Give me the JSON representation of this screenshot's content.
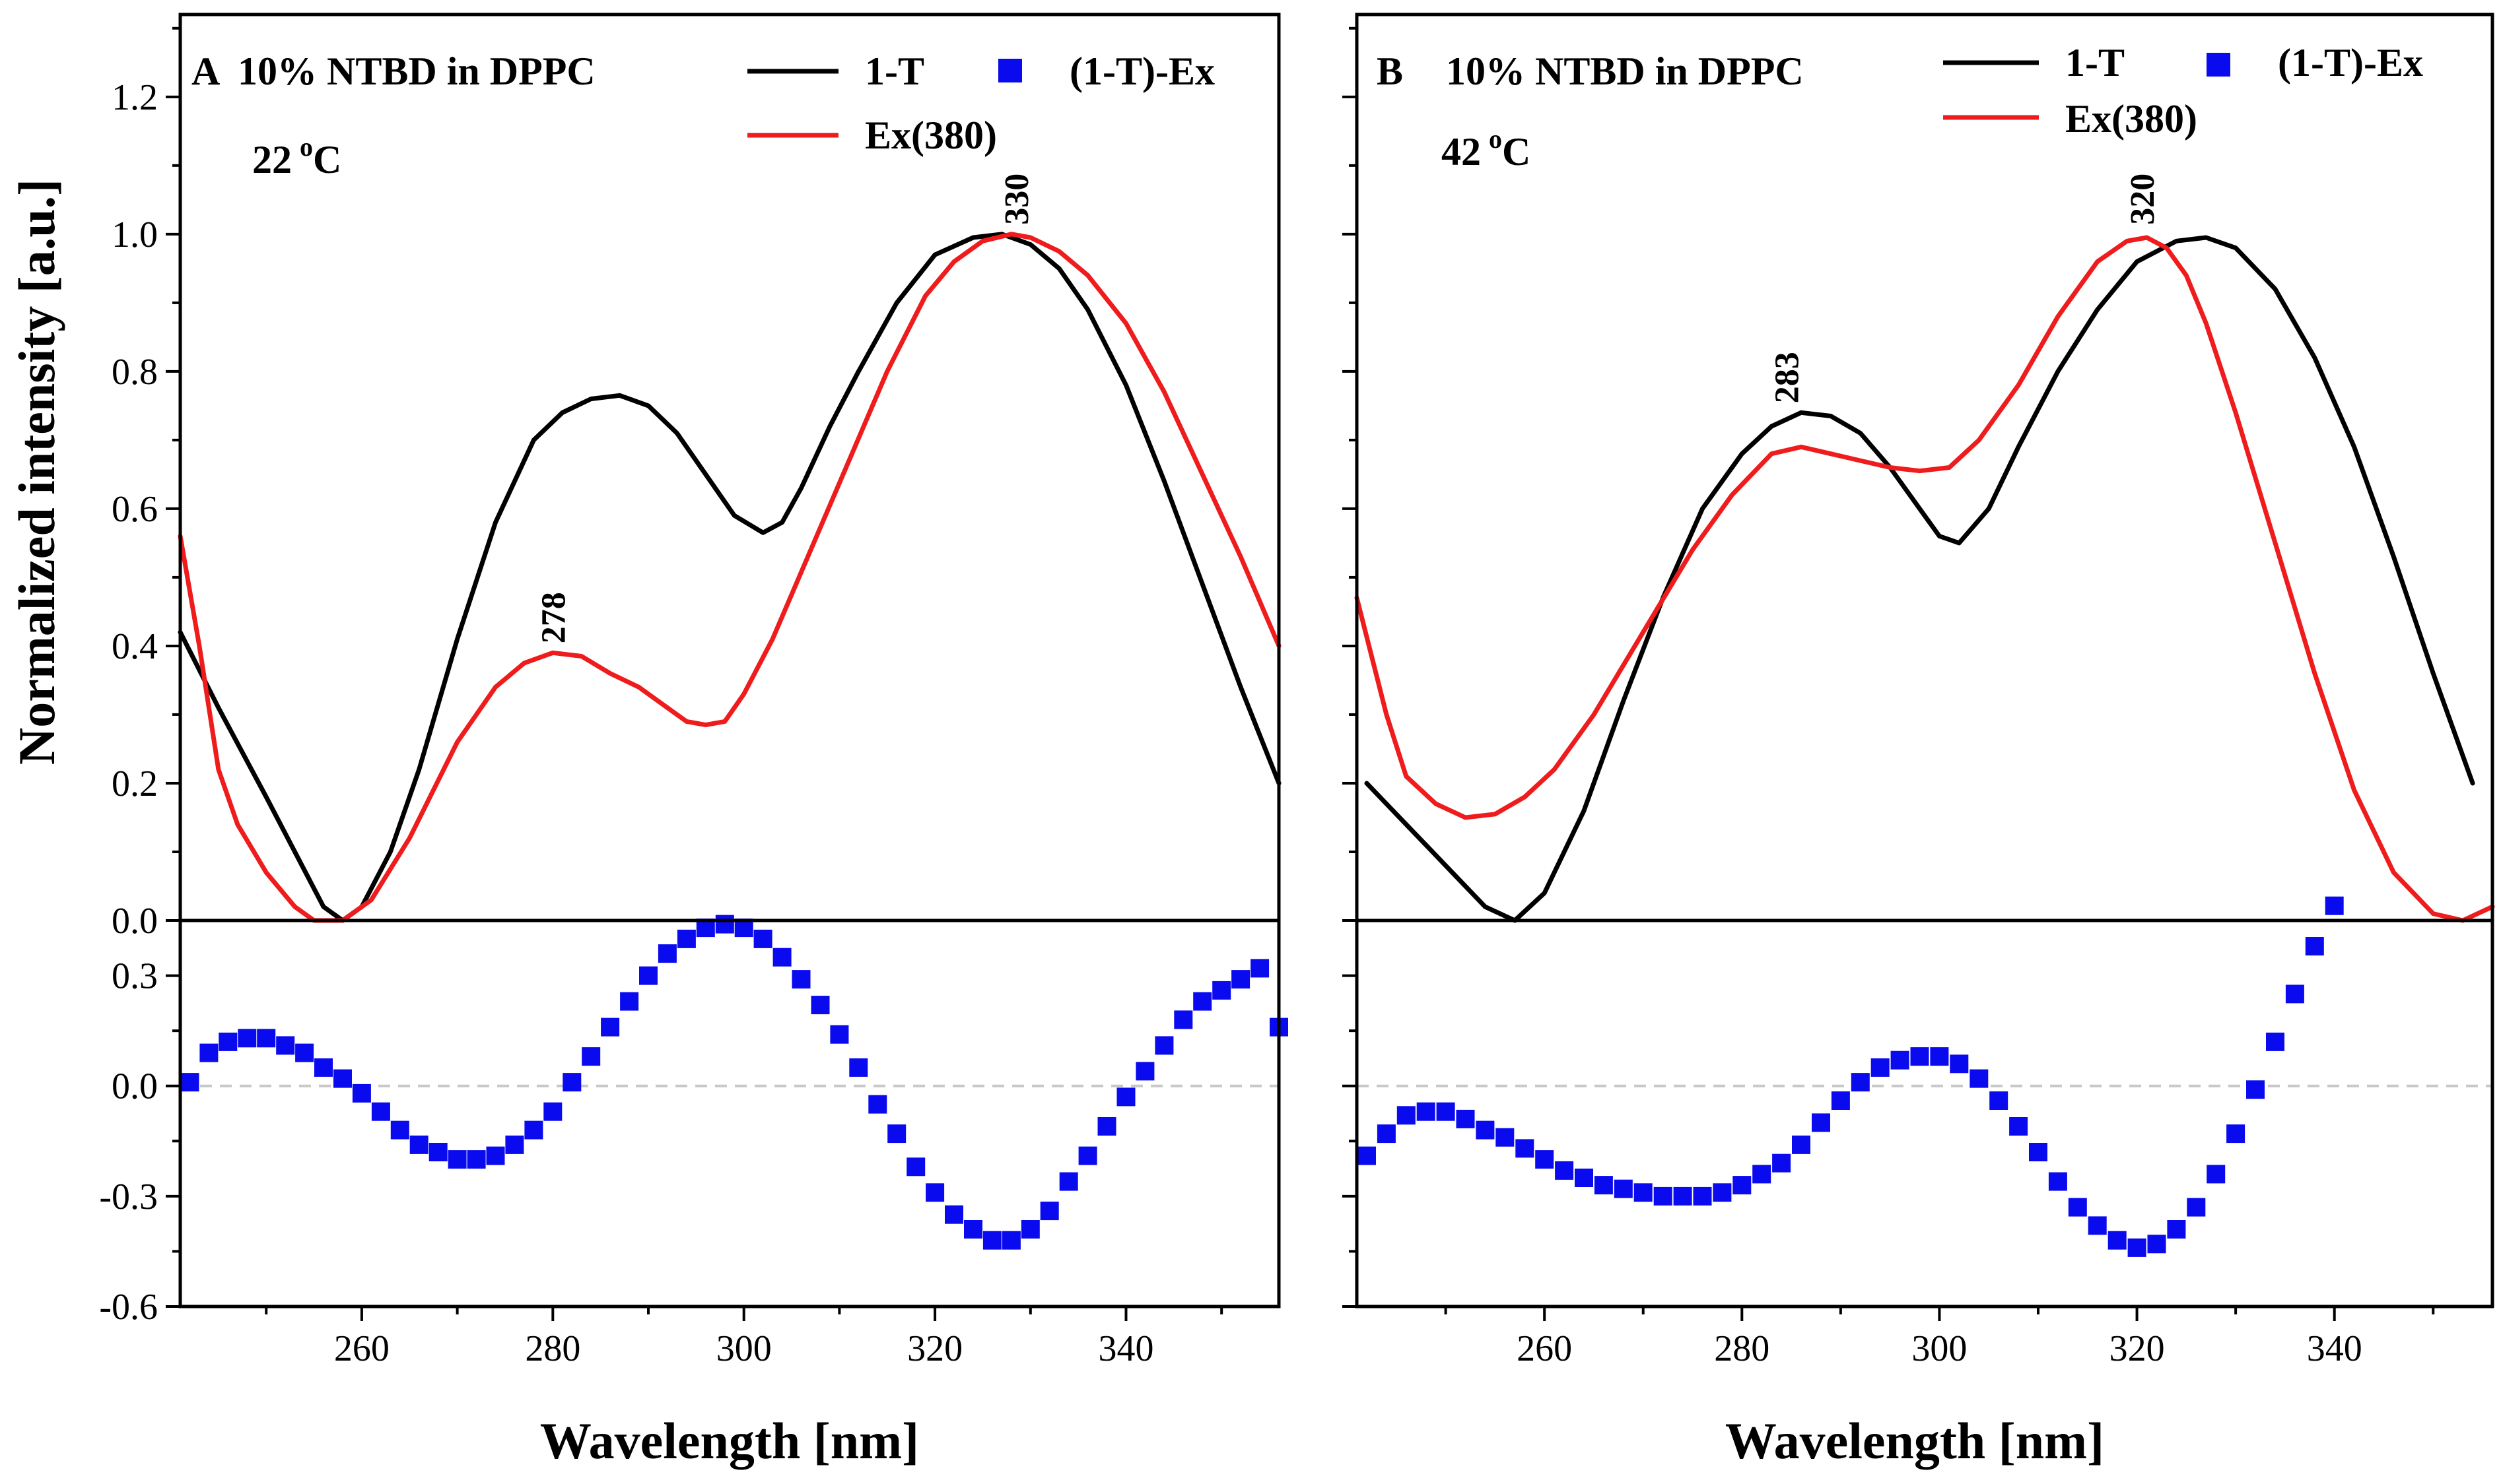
{
  "figure": {
    "xlabel": "Wavelength [nm]",
    "ylabel": "Normalized intensity [a.u.]",
    "top_yticks": [
      "0.0",
      "0.2",
      "0.4",
      "0.6",
      "0.8",
      "1.0",
      "1.2"
    ],
    "bottom_yticks": [
      "-0.6",
      "-0.3",
      "0.0",
      "0.3"
    ],
    "xticks": [
      "260",
      "280",
      "300",
      "320",
      "340"
    ],
    "colors": {
      "t1": "#000000",
      "ex": "#ee1c1c",
      "diff": "#0a0aee",
      "zero": "#c8c8c8"
    }
  },
  "panels": [
    {
      "letter": "A",
      "title": "10% NTBD in DPPC",
      "temp": "22",
      "temp_sup": "o",
      "temp_unit": "C",
      "legend": {
        "t1": "1-T",
        "diff": "(1-T)-Ex",
        "ex": "Ex(380)"
      },
      "peaks": [
        {
          "label": "278",
          "x": 280,
          "y": 0.39
        },
        {
          "label": "330",
          "x": 328.5,
          "y": 1.0
        }
      ]
    },
    {
      "letter": "B",
      "title": "10% NTBD in DPPC",
      "temp": "42",
      "temp_sup": "o",
      "temp_unit": "C",
      "legend": {
        "t1": "1-T",
        "diff": "(1-T)-Ex",
        "ex": "Ex(380)"
      },
      "peaks": [
        {
          "label": "283",
          "x": 284.5,
          "y": 0.74
        },
        {
          "label": "320",
          "x": 320.5,
          "y": 1.0
        }
      ]
    }
  ],
  "chart_data": [
    {
      "type": "line",
      "title": "A 10% NTBD in DPPC, 22 oC",
      "xlabel": "Wavelength [nm]",
      "ylabel": "Normalized intensity [a.u.]",
      "xlim": [
        241,
        356
      ],
      "ylim": [
        0,
        1.32
      ],
      "series": [
        {
          "name": "1-T",
          "x": [
            241,
            245,
            250,
            253,
            256,
            258,
            260,
            263,
            266,
            270,
            274,
            278,
            281,
            284,
            287,
            290,
            293,
            296,
            299,
            302,
            304,
            306,
            309,
            312,
            316,
            320,
            324,
            327,
            330,
            333,
            336,
            340,
            344,
            348,
            352,
            356
          ],
          "y": [
            0.42,
            0.31,
            0.18,
            0.1,
            0.02,
            0.0,
            0.02,
            0.1,
            0.22,
            0.41,
            0.58,
            0.7,
            0.74,
            0.76,
            0.765,
            0.75,
            0.71,
            0.65,
            0.59,
            0.565,
            0.58,
            0.63,
            0.72,
            0.8,
            0.9,
            0.97,
            0.995,
            1.0,
            0.985,
            0.95,
            0.89,
            0.78,
            0.64,
            0.49,
            0.34,
            0.2
          ]
        },
        {
          "name": "Ex(380)",
          "x": [
            241,
            243,
            245,
            247,
            250,
            253,
            255,
            258,
            261,
            265,
            270,
            274,
            277,
            280,
            283,
            286,
            289,
            292,
            294,
            296,
            298,
            300,
            303,
            307,
            311,
            315,
            319,
            322,
            325,
            328,
            330,
            333,
            336,
            340,
            344,
            348,
            352,
            356
          ],
          "y": [
            0.56,
            0.4,
            0.22,
            0.14,
            0.07,
            0.02,
            0.0,
            0.0,
            0.03,
            0.12,
            0.26,
            0.34,
            0.375,
            0.39,
            0.385,
            0.36,
            0.34,
            0.31,
            0.29,
            0.285,
            0.29,
            0.33,
            0.41,
            0.54,
            0.67,
            0.8,
            0.91,
            0.96,
            0.99,
            1.0,
            0.995,
            0.975,
            0.94,
            0.87,
            0.77,
            0.65,
            0.53,
            0.4
          ]
        }
      ]
    },
    {
      "type": "scatter",
      "title": "A (1-T)-Ex",
      "xlabel": "Wavelength [nm]",
      "ylabel": "",
      "xlim": [
        241,
        356
      ],
      "ylim": [
        -0.6,
        0.45
      ],
      "series": [
        {
          "name": "(1-T)-Ex",
          "x": [
            242,
            244,
            246,
            248,
            250,
            252,
            254,
            256,
            258,
            260,
            262,
            264,
            266,
            268,
            270,
            272,
            274,
            276,
            278,
            280,
            282,
            284,
            286,
            288,
            290,
            292,
            294,
            296,
            298,
            300,
            302,
            304,
            306,
            308,
            310,
            312,
            314,
            316,
            318,
            320,
            322,
            324,
            326,
            328,
            330,
            332,
            334,
            336,
            338,
            340,
            342,
            344,
            346,
            348,
            350,
            352,
            354,
            356
          ],
          "y": [
            0.01,
            0.09,
            0.12,
            0.13,
            0.13,
            0.11,
            0.09,
            0.05,
            0.02,
            -0.02,
            -0.07,
            -0.12,
            -0.16,
            -0.18,
            -0.2,
            -0.2,
            -0.19,
            -0.16,
            -0.12,
            -0.07,
            0.01,
            0.08,
            0.16,
            0.23,
            0.3,
            0.36,
            0.4,
            0.43,
            0.44,
            0.43,
            0.4,
            0.35,
            0.29,
            0.22,
            0.14,
            0.05,
            -0.05,
            -0.13,
            -0.22,
            -0.29,
            -0.35,
            -0.39,
            -0.42,
            -0.42,
            -0.39,
            -0.34,
            -0.26,
            -0.19,
            -0.11,
            -0.03,
            0.04,
            0.11,
            0.18,
            0.23,
            0.26,
            0.29,
            0.32,
            0.16
          ]
        }
      ]
    },
    {
      "type": "line",
      "title": "B 10% NTBD in DPPC, 42 oC",
      "xlabel": "Wavelength [nm]",
      "ylabel": "",
      "xlim": [
        241,
        356
      ],
      "ylim": [
        0,
        1.32
      ],
      "series": [
        {
          "name": "1-T",
          "x": [
            242,
            246,
            250,
            254,
            257,
            260,
            264,
            268,
            272,
            276,
            280,
            283,
            286,
            289,
            292,
            295,
            298,
            300,
            302,
            305,
            308,
            312,
            316,
            320,
            324,
            327,
            330,
            334,
            338,
            342,
            346,
            350,
            354
          ],
          "y": [
            0.2,
            0.14,
            0.08,
            0.02,
            0.0,
            0.04,
            0.16,
            0.32,
            0.47,
            0.6,
            0.68,
            0.72,
            0.74,
            0.735,
            0.71,
            0.66,
            0.6,
            0.56,
            0.55,
            0.6,
            0.69,
            0.8,
            0.89,
            0.96,
            0.99,
            0.995,
            0.98,
            0.92,
            0.82,
            0.69,
            0.53,
            0.36,
            0.2
          ]
        },
        {
          "name": "Ex(380)",
          "x": [
            241,
            244,
            246,
            249,
            252,
            255,
            258,
            261,
            265,
            270,
            275,
            279,
            283,
            286,
            289,
            292,
            295,
            298,
            301,
            304,
            308,
            312,
            316,
            319,
            321,
            323,
            325,
            327,
            330,
            334,
            338,
            342,
            346,
            350,
            353,
            356
          ],
          "y": [
            0.47,
            0.3,
            0.21,
            0.17,
            0.15,
            0.155,
            0.18,
            0.22,
            0.3,
            0.42,
            0.54,
            0.62,
            0.68,
            0.69,
            0.68,
            0.67,
            0.66,
            0.655,
            0.66,
            0.7,
            0.78,
            0.88,
            0.96,
            0.99,
            0.995,
            0.98,
            0.94,
            0.87,
            0.74,
            0.55,
            0.36,
            0.19,
            0.07,
            0.01,
            0.0,
            0.02
          ]
        }
      ]
    },
    {
      "type": "scatter",
      "title": "B (1-T)-Ex",
      "xlabel": "Wavelength [nm]",
      "ylabel": "",
      "xlim": [
        241,
        356
      ],
      "ylim": [
        -0.6,
        0.45
      ],
      "series": [
        {
          "name": "(1-T)-Ex",
          "x": [
            242,
            244,
            246,
            248,
            250,
            252,
            254,
            256,
            258,
            260,
            262,
            264,
            266,
            268,
            270,
            272,
            274,
            276,
            278,
            280,
            282,
            284,
            286,
            288,
            290,
            292,
            294,
            296,
            298,
            300,
            302,
            304,
            306,
            308,
            310,
            312,
            314,
            316,
            318,
            320,
            322,
            324,
            326,
            328,
            330,
            332,
            334,
            336,
            338,
            340
          ],
          "y": [
            -0.19,
            -0.13,
            -0.08,
            -0.07,
            -0.07,
            -0.09,
            -0.12,
            -0.14,
            -0.17,
            -0.2,
            -0.23,
            -0.25,
            -0.27,
            -0.28,
            -0.29,
            -0.3,
            -0.3,
            -0.3,
            -0.29,
            -0.27,
            -0.24,
            -0.21,
            -0.16,
            -0.1,
            -0.04,
            0.01,
            0.05,
            0.07,
            0.08,
            0.08,
            0.06,
            0.02,
            -0.04,
            -0.11,
            -0.18,
            -0.26,
            -0.33,
            -0.38,
            -0.42,
            -0.44,
            -0.43,
            -0.39,
            -0.33,
            -0.24,
            -0.13,
            -0.01,
            0.12,
            0.25,
            0.38,
            0.49
          ]
        }
      ]
    }
  ]
}
